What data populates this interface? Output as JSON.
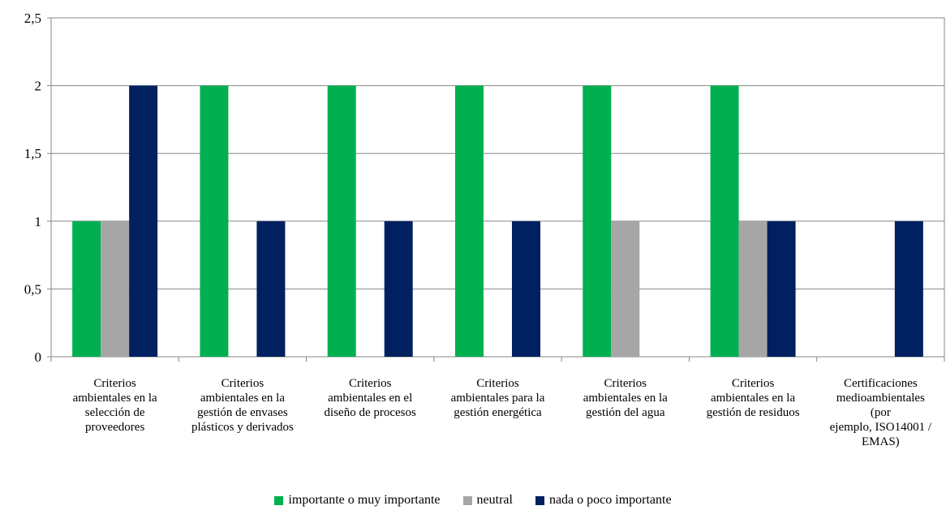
{
  "chart_data": {
    "type": "bar",
    "title": "",
    "xlabel": "",
    "ylabel": "",
    "ylim": [
      0,
      2.5
    ],
    "yticks": [
      "0",
      "0,5",
      "1",
      "1,5",
      "2",
      "2,5"
    ],
    "grid": true,
    "legend_position": "bottom",
    "categories": [
      "Criterios ambientales en la selección de proveedores",
      "Criterios ambientales en la gestión de envases plásticos y derivados",
      "Criterios ambientales en el diseño de procesos",
      "Criterios ambientales para la gestión energética",
      "Criterios ambientales en la gestión del agua",
      "Criterios ambientales en la gestión de residuos",
      "Certificaciones medioambientales (por ejemplo, ISO14001 / EMAS)"
    ],
    "category_lines": [
      [
        "Criterios",
        "ambientales en la",
        "selección de",
        "proveedores"
      ],
      [
        "Criterios",
        "ambientales en la",
        "gestión de envases",
        "plásticos y derivados"
      ],
      [
        "Criterios",
        "ambientales en el",
        "diseño de procesos"
      ],
      [
        "Criterios",
        "ambientales para la",
        "gestión energética"
      ],
      [
        "Criterios",
        "ambientales en la",
        "gestión del agua"
      ],
      [
        "Criterios",
        "ambientales en la",
        "gestión de residuos"
      ],
      [
        "Certificaciones",
        "medioambientales",
        "(por",
        "ejemplo, ISO14001 /",
        "EMAS)"
      ]
    ],
    "series": [
      {
        "name": "importante o muy importante",
        "color": "#00b050",
        "values": [
          1,
          2,
          2,
          2,
          2,
          2,
          0
        ]
      },
      {
        "name": "neutral",
        "color": "#a6a6a6",
        "values": [
          1,
          0,
          0,
          0,
          1,
          1,
          0
        ]
      },
      {
        "name": "nada o poco importante",
        "color": "#002060",
        "values": [
          2,
          1,
          1,
          1,
          0,
          1,
          1
        ]
      }
    ]
  }
}
